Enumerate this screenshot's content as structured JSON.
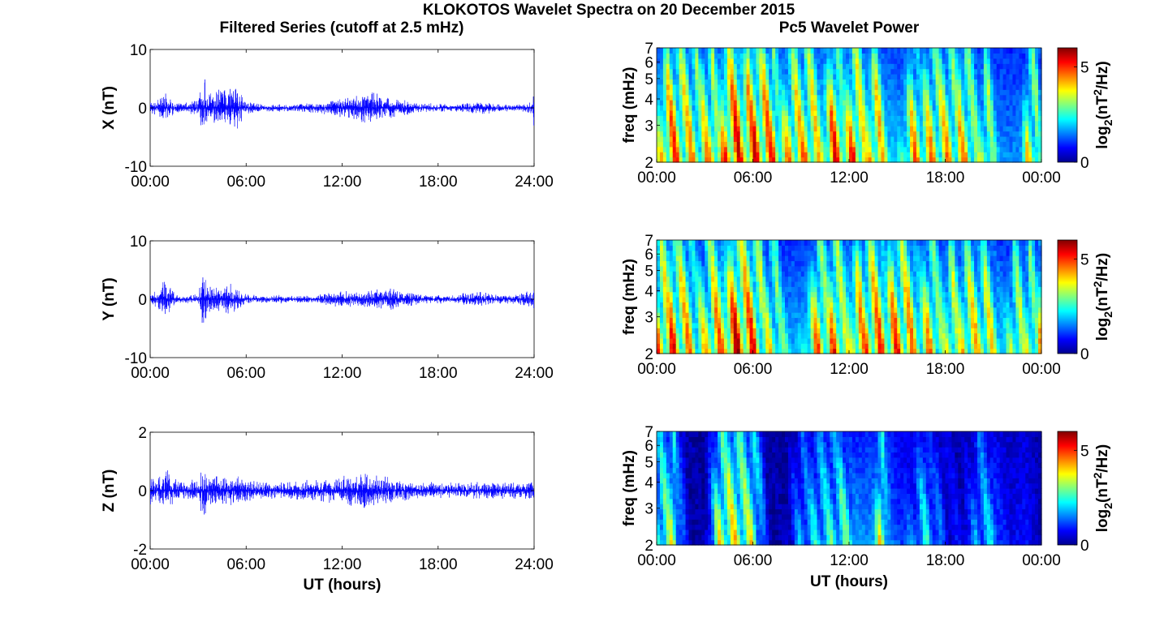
{
  "figure": {
    "title": "KLOKOTOS Wavelet Spectra on 20 December 2015",
    "left_column_title": "Filtered Series (cutoff at 2.5 mHz)",
    "right_column_title": "Pc5 Wavelet Power"
  },
  "chart_data": [
    {
      "type": "line",
      "panel": "X",
      "title": "",
      "ylabel": "X (nT)",
      "xlabel": "",
      "xlim": [
        0,
        24
      ],
      "ylim": [
        -10,
        10
      ],
      "xticks": [
        0,
        6,
        12,
        18,
        24
      ],
      "xticklabels": [
        "00:00",
        "06:00",
        "12:00",
        "18:00",
        "24:00"
      ],
      "yticks": [
        -10,
        0,
        10
      ],
      "yticklabels": [
        "-10",
        "0",
        "10"
      ],
      "color": "#0000ff",
      "envelope": {
        "hours": [
          0.0,
          0.5,
          1.0,
          1.5,
          2.0,
          3.0,
          3.4,
          3.6,
          4.0,
          4.5,
          5.0,
          5.5,
          6.0,
          7.0,
          8.0,
          9.0,
          10.0,
          11.0,
          12.0,
          13.0,
          13.7,
          14.5,
          15.5,
          17.0,
          18.0,
          19.0,
          20.0,
          21.0,
          22.0,
          23.0,
          23.9,
          24.0
        ],
        "amplitude": [
          1.2,
          1.5,
          2.8,
          1.0,
          0.8,
          1.4,
          6.0,
          2.5,
          3.0,
          3.5,
          4.0,
          3.6,
          1.2,
          0.6,
          0.7,
          0.6,
          0.8,
          1.2,
          1.8,
          2.6,
          3.2,
          2.2,
          1.6,
          0.8,
          0.8,
          0.6,
          1.0,
          1.2,
          0.7,
          0.6,
          1.0,
          6.5
        ]
      }
    },
    {
      "type": "line",
      "panel": "Y",
      "title": "",
      "ylabel": "Y (nT)",
      "xlabel": "",
      "xlim": [
        0,
        24
      ],
      "ylim": [
        -10,
        10
      ],
      "xticks": [
        0,
        6,
        12,
        18,
        24
      ],
      "xticklabels": [
        "00:00",
        "06:00",
        "12:00",
        "18:00",
        "24:00"
      ],
      "yticks": [
        -10,
        0,
        10
      ],
      "yticklabels": [
        "-10",
        "0",
        "10"
      ],
      "color": "#0000ff",
      "envelope": {
        "hours": [
          0.0,
          0.5,
          0.9,
          1.5,
          2.0,
          3.0,
          3.4,
          3.6,
          4.0,
          4.5,
          5.0,
          5.5,
          6.0,
          7.0,
          8.0,
          9.0,
          10.0,
          11.0,
          12.0,
          13.0,
          14.0,
          15.0,
          16.0,
          17.0,
          18.0,
          19.0,
          20.0,
          21.0,
          22.0,
          23.0,
          23.9,
          24.0
        ],
        "amplitude": [
          1.0,
          1.6,
          3.5,
          1.2,
          0.6,
          1.0,
          6.0,
          2.5,
          2.2,
          2.0,
          2.8,
          2.0,
          1.0,
          0.6,
          0.8,
          0.6,
          0.6,
          1.0,
          1.6,
          1.4,
          1.6,
          2.0,
          1.5,
          0.8,
          0.8,
          0.7,
          1.4,
          1.2,
          0.8,
          1.0,
          1.6,
          3.8
        ]
      }
    },
    {
      "type": "line",
      "panel": "Z",
      "title": "",
      "ylabel": "Z (nT)",
      "xlabel": "UT (hours)",
      "xlim": [
        0,
        24
      ],
      "ylim": [
        -2,
        2
      ],
      "xticks": [
        0,
        6,
        12,
        18,
        24
      ],
      "xticklabels": [
        "00:00",
        "06:00",
        "12:00",
        "18:00",
        "24:00"
      ],
      "yticks": [
        -2,
        0,
        2
      ],
      "yticklabels": [
        "-2",
        "0",
        "2"
      ],
      "color": "#0000ff",
      "envelope": {
        "hours": [
          0.0,
          0.5,
          1.0,
          1.5,
          2.0,
          3.0,
          3.4,
          3.6,
          4.0,
          4.5,
          5.0,
          5.5,
          6.0,
          7.0,
          8.0,
          9.0,
          10.0,
          11.0,
          12.0,
          13.0,
          13.5,
          14.5,
          15.5,
          17.0,
          18.0,
          19.0,
          20.0,
          21.0,
          22.0,
          23.0,
          23.9,
          24.0
        ],
        "amplitude": [
          0.5,
          0.5,
          0.9,
          0.4,
          0.4,
          0.5,
          1.1,
          0.5,
          0.5,
          0.5,
          0.6,
          0.5,
          0.4,
          0.3,
          0.3,
          0.3,
          0.4,
          0.4,
          0.5,
          0.6,
          0.65,
          0.5,
          0.4,
          0.3,
          0.3,
          0.3,
          0.3,
          0.3,
          0.3,
          0.3,
          0.3,
          0.5
        ]
      }
    },
    {
      "type": "heatmap",
      "panel": "X",
      "title": "",
      "ylabel": "freq (mHz)",
      "xlabel": "",
      "xlim": [
        0,
        24
      ],
      "ylim": [
        2,
        7
      ],
      "yscale": "log",
      "xticks": [
        0,
        6,
        12,
        18,
        24
      ],
      "xticklabels": [
        "00:00",
        "06:00",
        "12:00",
        "18:00",
        "00:00"
      ],
      "yticks": [
        2,
        3,
        4,
        5,
        6,
        7
      ],
      "yticklabels": [
        "2",
        "3",
        "4",
        "5",
        "6",
        "7"
      ],
      "colorbar": {
        "label_base": "log",
        "label_sub": "2",
        "label_rest": "(nT",
        "label_sup": "2",
        "label_end": "/Hz)",
        "clim": [
          0,
          6
        ],
        "ticks": [
          0,
          5
        ],
        "ticklabels": [
          "0",
          "5"
        ],
        "colormap": "jet"
      },
      "activity": [
        4.0,
        4.2,
        3.6,
        3.4,
        4.6,
        4.6,
        4.4,
        4.2,
        4.0,
        3.8,
        3.9,
        4.2,
        4.3,
        4.1,
        3.8,
        3.6,
        3.7,
        3.6,
        3.5,
        3.6,
        3.4,
        3.2,
        3.0,
        3.2,
        3.6
      ],
      "seed": 11
    },
    {
      "type": "heatmap",
      "panel": "Y",
      "title": "",
      "ylabel": "freq (mHz)",
      "xlabel": "",
      "xlim": [
        0,
        24
      ],
      "ylim": [
        2,
        7
      ],
      "yscale": "log",
      "xticks": [
        0,
        6,
        12,
        18,
        24
      ],
      "xticklabels": [
        "00:00",
        "06:00",
        "12:00",
        "18:00",
        "00:00"
      ],
      "yticks": [
        2,
        3,
        4,
        5,
        6,
        7
      ],
      "yticklabels": [
        "2",
        "3",
        "4",
        "5",
        "6",
        "7"
      ],
      "colorbar": {
        "label_base": "log",
        "label_sub": "2",
        "label_rest": "(nT",
        "label_sup": "2",
        "label_end": "/Hz)",
        "clim": [
          0,
          6
        ],
        "ticks": [
          0,
          5
        ],
        "ticklabels": [
          "0",
          "5"
        ],
        "colormap": "jet"
      },
      "activity": [
        4.0,
        4.2,
        3.6,
        3.2,
        4.6,
        4.6,
        4.2,
        3.0,
        3.2,
        3.4,
        3.8,
        4.0,
        4.2,
        4.0,
        4.2,
        4.1,
        3.8,
        3.6,
        3.6,
        3.6,
        3.6,
        3.4,
        3.2,
        3.4,
        3.4
      ],
      "seed": 23
    },
    {
      "type": "heatmap",
      "panel": "Z",
      "title": "",
      "ylabel": "freq (mHz)",
      "xlabel": "UT (hours)",
      "xlim": [
        0,
        24
      ],
      "ylim": [
        2,
        7
      ],
      "yscale": "log",
      "xticks": [
        0,
        6,
        12,
        18,
        24
      ],
      "xticklabels": [
        "00:00",
        "06:00",
        "12:00",
        "18:00",
        "00:00"
      ],
      "yticks": [
        2,
        3,
        4,
        5,
        6,
        7
      ],
      "yticklabels": [
        "2",
        "3",
        "4",
        "5",
        "6",
        "7"
      ],
      "colorbar": {
        "label_base": "log",
        "label_sub": "2",
        "label_rest": "(nT",
        "label_sup": "2",
        "label_end": "/Hz)",
        "clim": [
          0,
          6
        ],
        "ticks": [
          0,
          5
        ],
        "ticklabels": [
          "0",
          "5"
        ],
        "colormap": "jet"
      },
      "activity": [
        2.4,
        3.0,
        0.3,
        0.2,
        3.4,
        3.2,
        3.0,
        0.3,
        0.2,
        1.6,
        2.0,
        2.2,
        2.6,
        3.0,
        3.2,
        2.2,
        1.6,
        2.0,
        0.8,
        0.6,
        1.6,
        2.0,
        1.2,
        1.6,
        0.6
      ],
      "seed": 37
    }
  ]
}
